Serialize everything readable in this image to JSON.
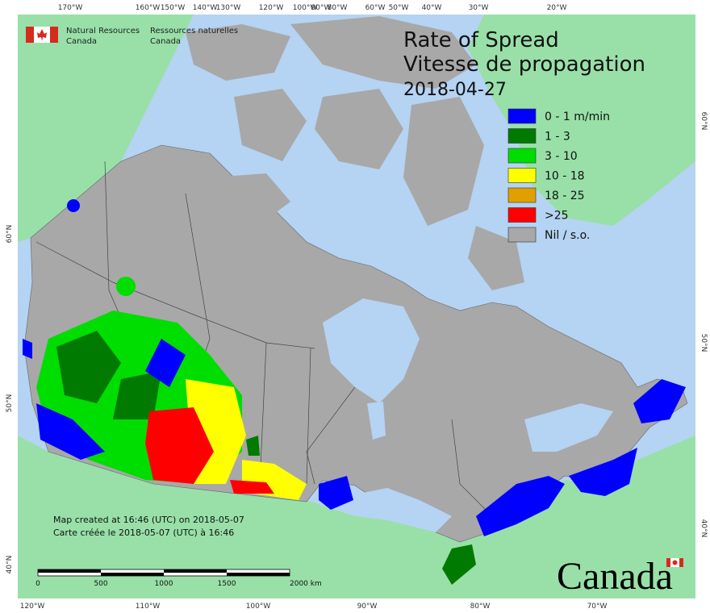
{
  "header": {
    "agency_en_1": "Natural Resources",
    "agency_en_2": "Canada",
    "agency_fr_1": "Ressources naturelles",
    "agency_fr_2": "Canada"
  },
  "title": {
    "line1": "Rate of Spread",
    "line2": "Vitesse de propagation",
    "date": "2018-04-27"
  },
  "legend": {
    "items": [
      {
        "label": "0 - 1 m/min",
        "color": "#0000ff"
      },
      {
        "label": "1 - 3",
        "color": "#007a00"
      },
      {
        "label": "3 - 10",
        "color": "#00dd00"
      },
      {
        "label": "10 - 18",
        "color": "#ffff00"
      },
      {
        "label": "18 - 25",
        "color": "#e0a000"
      },
      {
        "label": ">25",
        "color": "#ff0000"
      },
      {
        "label": "Nil / s.o.",
        "color": "#a8a8a8"
      }
    ]
  },
  "graticule": {
    "top": [
      "170°W",
      "160°W",
      "150°W",
      "140°W",
      "130°W",
      "120°W",
      "100°W",
      "90°W",
      "80°W",
      "60°W",
      "50°W",
      "40°W",
      "30°W",
      "20°W"
    ],
    "bottom": [
      "120°W",
      "110°W",
      "100°W",
      "90°W",
      "80°W",
      "70°W"
    ],
    "left": [
      "60°N",
      "50°N",
      "40°N"
    ],
    "right": [
      "60°N",
      "50°N",
      "40°N"
    ]
  },
  "credits": {
    "en": "Map created at 16:46 (UTC) on 2018-05-07",
    "fr": "Carte créée le 2018-05-07 (UTC) à 16:46"
  },
  "scale_bar": {
    "labels": [
      "0",
      "500",
      "1000",
      "1500",
      "2000 km"
    ]
  },
  "wordmark": "Canada"
}
